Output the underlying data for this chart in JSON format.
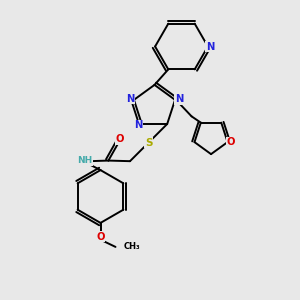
{
  "background_color": "#e8e8e8",
  "figsize": [
    3.0,
    3.0
  ],
  "dpi": 100,
  "colors": {
    "C": "#000000",
    "N": "#2222dd",
    "O": "#dd0000",
    "S": "#aaaa00",
    "H": "#44aaaa",
    "bond": "#000000"
  },
  "lw": 1.4
}
